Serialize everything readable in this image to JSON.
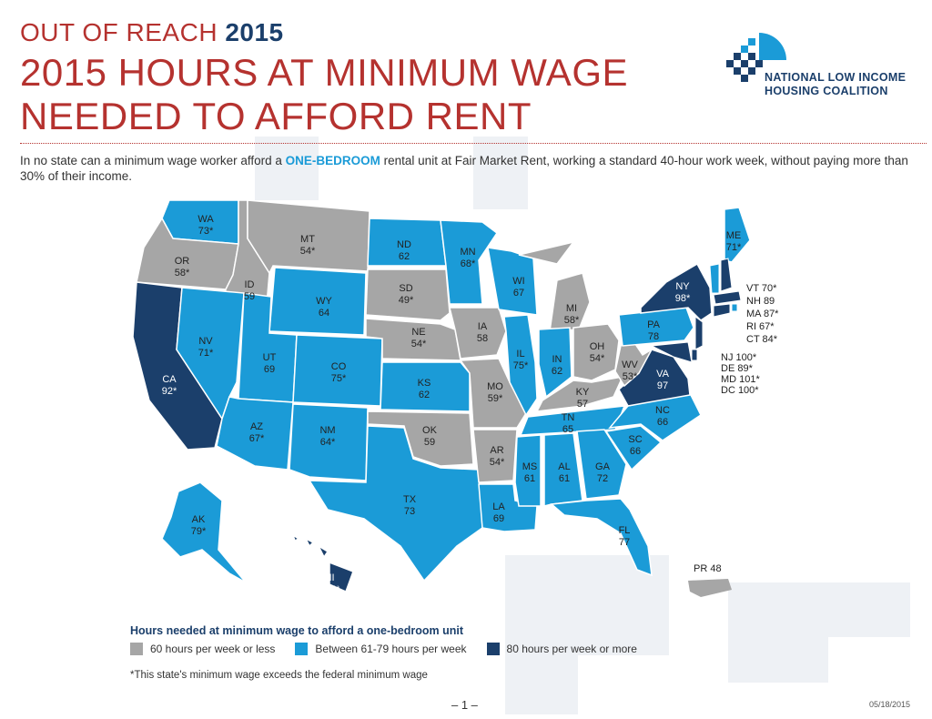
{
  "header": {
    "kicker_text": "OUT OF REACH",
    "kicker_year": "2015",
    "title_line1": "2015 HOURS AT MINIMUM WAGE",
    "title_line2": "NEEDED TO AFFORD RENT"
  },
  "logo": {
    "line1": "NATIONAL LOW INCOME",
    "line2": "HOUSING COALITION",
    "icon": "house-squares-logo"
  },
  "intro": {
    "before": "In no state can a minimum wage worker afford a ",
    "highlight": "ONE-BEDROOM",
    "after": " rental unit at Fair Market Rent, working a standard 40-hour work week, without paying more than 30% of their income."
  },
  "colors": {
    "low": "#a6a6a6",
    "mid": "#1b9bd7",
    "high": "#1b3f6b",
    "accent": "#b5322f"
  },
  "states": [
    {
      "abbr": "WA",
      "hours": "73*",
      "tier": "mid"
    },
    {
      "abbr": "OR",
      "hours": "58*",
      "tier": "low"
    },
    {
      "abbr": "CA",
      "hours": "92*",
      "tier": "high"
    },
    {
      "abbr": "ID",
      "hours": "59",
      "tier": "low"
    },
    {
      "abbr": "NV",
      "hours": "71*",
      "tier": "mid"
    },
    {
      "abbr": "MT",
      "hours": "54*",
      "tier": "low"
    },
    {
      "abbr": "WY",
      "hours": "64",
      "tier": "mid"
    },
    {
      "abbr": "UT",
      "hours": "69",
      "tier": "mid"
    },
    {
      "abbr": "AZ",
      "hours": "67*",
      "tier": "mid"
    },
    {
      "abbr": "CO",
      "hours": "75*",
      "tier": "mid"
    },
    {
      "abbr": "NM",
      "hours": "64*",
      "tier": "mid"
    },
    {
      "abbr": "ND",
      "hours": "62",
      "tier": "mid"
    },
    {
      "abbr": "SD",
      "hours": "49*",
      "tier": "low"
    },
    {
      "abbr": "NE",
      "hours": "54*",
      "tier": "low"
    },
    {
      "abbr": "KS",
      "hours": "62",
      "tier": "mid"
    },
    {
      "abbr": "OK",
      "hours": "59",
      "tier": "low"
    },
    {
      "abbr": "TX",
      "hours": "73",
      "tier": "mid"
    },
    {
      "abbr": "MN",
      "hours": "68*",
      "tier": "mid"
    },
    {
      "abbr": "IA",
      "hours": "58",
      "tier": "low"
    },
    {
      "abbr": "MO",
      "hours": "59*",
      "tier": "low"
    },
    {
      "abbr": "AR",
      "hours": "54*",
      "tier": "low"
    },
    {
      "abbr": "LA",
      "hours": "69",
      "tier": "mid"
    },
    {
      "abbr": "WI",
      "hours": "67",
      "tier": "mid"
    },
    {
      "abbr": "IL",
      "hours": "75*",
      "tier": "mid"
    },
    {
      "abbr": "MI",
      "hours": "58*",
      "tier": "low"
    },
    {
      "abbr": "IN",
      "hours": "62",
      "tier": "mid"
    },
    {
      "abbr": "OH",
      "hours": "54*",
      "tier": "low"
    },
    {
      "abbr": "KY",
      "hours": "57",
      "tier": "low"
    },
    {
      "abbr": "TN",
      "hours": "65",
      "tier": "mid"
    },
    {
      "abbr": "MS",
      "hours": "61",
      "tier": "mid"
    },
    {
      "abbr": "AL",
      "hours": "61",
      "tier": "mid"
    },
    {
      "abbr": "GA",
      "hours": "72",
      "tier": "mid"
    },
    {
      "abbr": "FL",
      "hours": "77",
      "tier": "mid"
    },
    {
      "abbr": "SC",
      "hours": "66",
      "tier": "mid"
    },
    {
      "abbr": "NC",
      "hours": "66",
      "tier": "mid"
    },
    {
      "abbr": "VA",
      "hours": "97",
      "tier": "high"
    },
    {
      "abbr": "WV",
      "hours": "53*",
      "tier": "low"
    },
    {
      "abbr": "PA",
      "hours": "78",
      "tier": "mid"
    },
    {
      "abbr": "NY",
      "hours": "98*",
      "tier": "high"
    },
    {
      "abbr": "ME",
      "hours": "71*",
      "tier": "mid"
    },
    {
      "abbr": "AK",
      "hours": "79*",
      "tier": "mid"
    },
    {
      "abbr": "HI",
      "hours": "125*",
      "tier": "high"
    }
  ],
  "side_labels": {
    "northeast": [
      "VT 70*",
      "NH 89",
      "MA 87*",
      "RI 67*",
      "CT 84*"
    ],
    "midatlantic": [
      "NJ 100*",
      "DE 89*",
      "MD 101*",
      "DC 100*"
    ],
    "pr": "PR 48"
  },
  "legend": {
    "title": "Hours needed at minimum wage to afford a one-bedroom unit",
    "items": [
      {
        "label": "60 hours per week or less",
        "tier": "low"
      },
      {
        "label": "Between 61-79 hours per week",
        "tier": "mid"
      },
      {
        "label": "80 hours per week or more",
        "tier": "high"
      }
    ],
    "note": "*This state's minimum wage exceeds the federal minimum wage"
  },
  "footer": {
    "page": "– 1 –",
    "date": "05/18/2015"
  }
}
